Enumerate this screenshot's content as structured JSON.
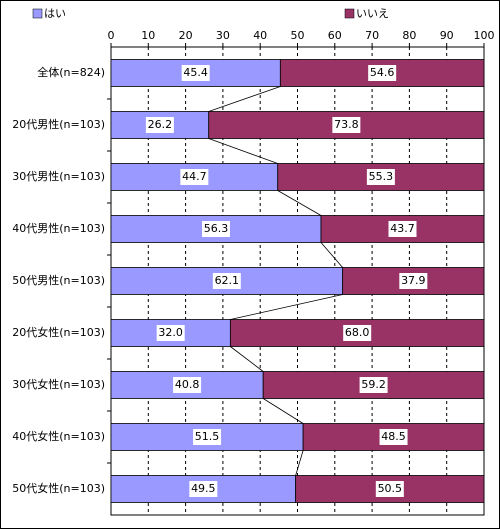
{
  "chart_data": {
    "type": "stacked-bar-horizontal",
    "categories": [
      "全体(n=824)",
      "20代男性(n=103)",
      "30代男性(n=103)",
      "40代男性(n=103)",
      "50代男性(n=103)",
      "20代女性(n=103)",
      "30代女性(n=103)",
      "40代女性(n=103)",
      "50代女性(n=103)"
    ],
    "series": [
      {
        "name": "はい",
        "color": "#9999ff",
        "values": [
          45.4,
          26.2,
          44.7,
          56.3,
          62.1,
          32.0,
          40.8,
          51.5,
          49.5
        ],
        "value_labels": [
          "45.4",
          "26.2",
          "44.7",
          "56.3",
          "62.1",
          "32.0",
          "40.8",
          "51.5",
          "49.5"
        ]
      },
      {
        "name": "いいえ",
        "color": "#993366",
        "values": [
          54.6,
          73.8,
          55.3,
          43.7,
          37.9,
          68.0,
          59.2,
          48.5,
          50.5
        ],
        "value_labels": [
          "54.6",
          "73.8",
          "55.3",
          "43.7",
          "37.9",
          "68.0",
          "59.2",
          "48.5",
          "50.5"
        ]
      }
    ],
    "xlim": [
      0,
      100
    ],
    "xticks": [
      0,
      10,
      20,
      30,
      40,
      50,
      60,
      70,
      80,
      90,
      100
    ],
    "grid": true,
    "series_lines": true,
    "legend": "top"
  }
}
